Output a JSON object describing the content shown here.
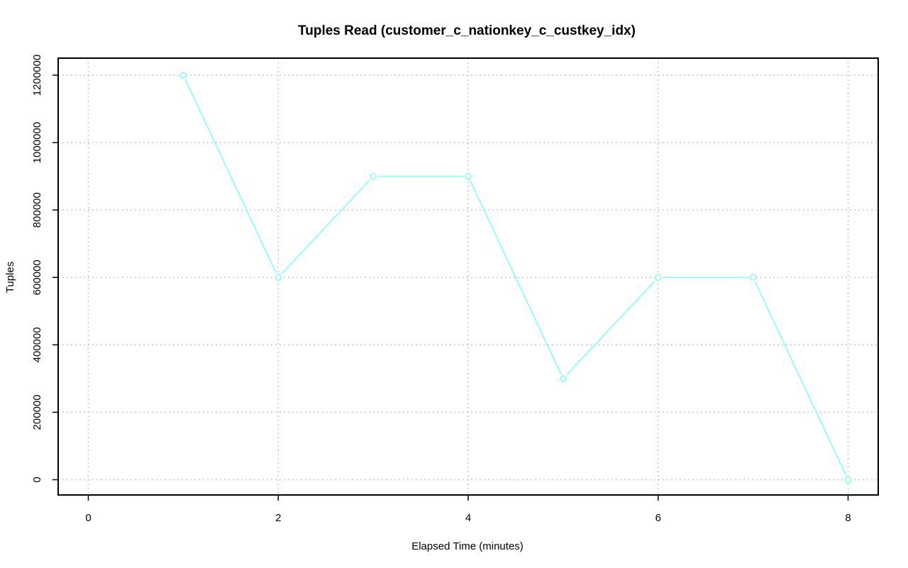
{
  "chart_data": {
    "type": "line",
    "title": "Tuples Read (customer_c_nationkey_c_custkey_idx)",
    "xlabel": "Elapsed Time (minutes)",
    "ylabel": "Tuples",
    "xlim": [
      0,
      8
    ],
    "ylim": [
      0,
      1200000
    ],
    "x_ticks": [
      0,
      2,
      4,
      6,
      8
    ],
    "y_ticks": [
      0,
      200000,
      400000,
      600000,
      800000,
      1000000,
      1200000
    ],
    "x_tick_labels": [
      "0",
      "2",
      "4",
      "6",
      "8"
    ],
    "y_tick_labels": [
      "0",
      "200000",
      "400000",
      "600000",
      "800000",
      "1000000",
      "1200000"
    ],
    "grid": true,
    "series": [
      {
        "color": "#7fffff",
        "x": [
          1,
          2,
          3,
          4,
          5,
          6,
          7,
          8
        ],
        "values": [
          1200000,
          600000,
          900000,
          900000,
          300000,
          600000,
          600000,
          0
        ]
      }
    ]
  }
}
